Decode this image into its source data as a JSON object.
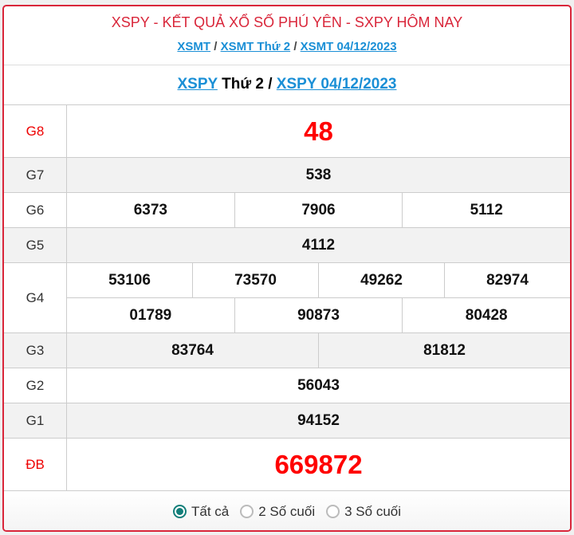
{
  "header": {
    "title": "XSPY - KẾT QUẢ XỔ SỐ PHÚ YÊN - SXPY HÔM NAY",
    "crumbs": [
      "XSMT",
      "XSMT Thứ 2",
      "XSMT 04/12/2023"
    ],
    "sep": "/"
  },
  "subheader": {
    "link1": "XSPY",
    "day": " Thứ 2 / ",
    "link2": "XSPY 04/12/2023"
  },
  "prizes": [
    {
      "label": "G8",
      "lines": [
        [
          "48"
        ]
      ],
      "big": true,
      "red": true,
      "gray": false,
      "h": 66
    },
    {
      "label": "G7",
      "lines": [
        [
          "538"
        ]
      ],
      "gray": true,
      "h": 44
    },
    {
      "label": "G6",
      "lines": [
        [
          "6373",
          "7906",
          "5112"
        ]
      ],
      "gray": false,
      "h": 44
    },
    {
      "label": "G5",
      "lines": [
        [
          "4112"
        ]
      ],
      "gray": true,
      "h": 44
    },
    {
      "label": "G4",
      "lines": [
        [
          "53106",
          "73570",
          "49262",
          "82974"
        ],
        [
          "01789",
          "90873",
          "80428"
        ]
      ],
      "gray": false,
      "h": 88
    },
    {
      "label": "G3",
      "lines": [
        [
          "83764",
          "81812"
        ]
      ],
      "gray": true,
      "h": 44
    },
    {
      "label": "G2",
      "lines": [
        [
          "56043"
        ]
      ],
      "gray": false,
      "h": 44
    },
    {
      "label": "G1",
      "lines": [
        [
          "94152"
        ]
      ],
      "gray": true,
      "h": 44
    },
    {
      "label": "ĐB",
      "lines": [
        [
          "669872"
        ]
      ],
      "big": true,
      "red": true,
      "gray": false,
      "h": 66
    }
  ],
  "filter": {
    "options": [
      "Tất cả",
      "2 Số cuối",
      "3 Số cuối"
    ],
    "selected": 0
  },
  "colors": {
    "accent": "#d9263a",
    "link": "#1a8fd6",
    "radio": "#137f7a"
  }
}
